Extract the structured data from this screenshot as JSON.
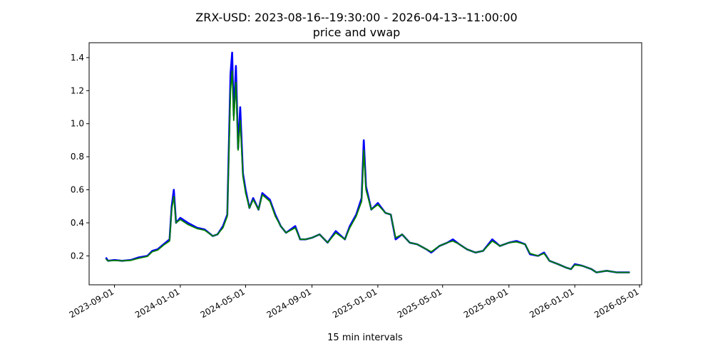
{
  "chart_data": {
    "type": "line",
    "title": "ZRX-USD: 2023-08-16--19:30:00 - 2026-04-13--11:00:00",
    "subtitle": "price and vwap",
    "xlabel": "15 min intervals",
    "ylabel": "",
    "xlim": [
      "2023-07-16",
      "2026-05-05"
    ],
    "ylim": [
      0.025,
      1.49
    ],
    "x_ticks": [
      "2023-09-01",
      "2024-01-01",
      "2024-05-01",
      "2024-09-01",
      "2025-01-01",
      "2025-05-01",
      "2025-09-01",
      "2026-01-01",
      "2026-05-01"
    ],
    "y_ticks": [
      0.2,
      0.4,
      0.6,
      0.8,
      1.0,
      1.2,
      1.4
    ],
    "y_tick_labels": [
      "0.2",
      "0.4",
      "0.6",
      "0.8",
      "1.0",
      "1.2",
      "1.4"
    ],
    "grid": false,
    "series": [
      {
        "color": "#0000ff",
        "points": [
          [
            "2023-08-16",
            0.19
          ],
          [
            "2023-08-20",
            0.17
          ],
          [
            "2023-09-01",
            0.175
          ],
          [
            "2023-09-15",
            0.17
          ],
          [
            "2023-10-01",
            0.175
          ],
          [
            "2023-10-15",
            0.19
          ],
          [
            "2023-11-01",
            0.2
          ],
          [
            "2023-11-10",
            0.23
          ],
          [
            "2023-11-20",
            0.24
          ],
          [
            "2023-12-01",
            0.27
          ],
          [
            "2023-12-12",
            0.3
          ],
          [
            "2023-12-16",
            0.5
          ],
          [
            "2023-12-20",
            0.6
          ],
          [
            "2023-12-24",
            0.4
          ],
          [
            "2024-01-01",
            0.43
          ],
          [
            "2024-01-15",
            0.4
          ],
          [
            "2024-02-01",
            0.37
          ],
          [
            "2024-02-15",
            0.36
          ],
          [
            "2024-03-01",
            0.32
          ],
          [
            "2024-03-10",
            0.33
          ],
          [
            "2024-03-20",
            0.38
          ],
          [
            "2024-03-28",
            0.45
          ],
          [
            "2024-04-03",
            1.3
          ],
          [
            "2024-04-06",
            1.43
          ],
          [
            "2024-04-09",
            1.05
          ],
          [
            "2024-04-13",
            1.35
          ],
          [
            "2024-04-17",
            0.85
          ],
          [
            "2024-04-21",
            1.1
          ],
          [
            "2024-04-26",
            0.7
          ],
          [
            "2024-05-01",
            0.6
          ],
          [
            "2024-05-08",
            0.49
          ],
          [
            "2024-05-15",
            0.55
          ],
          [
            "2024-05-25",
            0.48
          ],
          [
            "2024-06-01",
            0.58
          ],
          [
            "2024-06-15",
            0.54
          ],
          [
            "2024-06-25",
            0.45
          ],
          [
            "2024-07-05",
            0.38
          ],
          [
            "2024-07-15",
            0.34
          ],
          [
            "2024-08-01",
            0.38
          ],
          [
            "2024-08-10",
            0.3
          ],
          [
            "2024-08-20",
            0.3
          ],
          [
            "2024-09-01",
            0.31
          ],
          [
            "2024-09-15",
            0.33
          ],
          [
            "2024-09-30",
            0.28
          ],
          [
            "2024-10-15",
            0.35
          ],
          [
            "2024-11-01",
            0.3
          ],
          [
            "2024-11-10",
            0.38
          ],
          [
            "2024-11-22",
            0.45
          ],
          [
            "2024-12-02",
            0.55
          ],
          [
            "2024-12-06",
            0.9
          ],
          [
            "2024-12-10",
            0.62
          ],
          [
            "2024-12-20",
            0.48
          ],
          [
            "2025-01-01",
            0.52
          ],
          [
            "2025-01-15",
            0.46
          ],
          [
            "2025-01-25",
            0.45
          ],
          [
            "2025-02-03",
            0.3
          ],
          [
            "2025-02-15",
            0.33
          ],
          [
            "2025-03-01",
            0.28
          ],
          [
            "2025-03-15",
            0.27
          ],
          [
            "2025-04-01",
            0.24
          ],
          [
            "2025-04-10",
            0.22
          ],
          [
            "2025-04-25",
            0.26
          ],
          [
            "2025-05-10",
            0.28
          ],
          [
            "2025-05-20",
            0.3
          ],
          [
            "2025-06-01",
            0.27
          ],
          [
            "2025-06-15",
            0.24
          ],
          [
            "2025-07-01",
            0.22
          ],
          [
            "2025-07-15",
            0.23
          ],
          [
            "2025-08-01",
            0.3
          ],
          [
            "2025-08-15",
            0.26
          ],
          [
            "2025-09-01",
            0.28
          ],
          [
            "2025-09-15",
            0.29
          ],
          [
            "2025-10-01",
            0.27
          ],
          [
            "2025-10-10",
            0.21
          ],
          [
            "2025-10-25",
            0.2
          ],
          [
            "2025-11-05",
            0.22
          ],
          [
            "2025-11-15",
            0.17
          ],
          [
            "2025-12-01",
            0.15
          ],
          [
            "2025-12-15",
            0.13
          ],
          [
            "2025-12-25",
            0.12
          ],
          [
            "2026-01-01",
            0.15
          ],
          [
            "2026-01-15",
            0.14
          ],
          [
            "2026-02-01",
            0.12
          ],
          [
            "2026-02-10",
            0.1
          ],
          [
            "2026-03-01",
            0.11
          ],
          [
            "2026-03-20",
            0.1
          ],
          [
            "2026-04-13",
            0.1
          ]
        ]
      },
      {
        "color": "#008000",
        "points": [
          [
            "2023-08-16",
            0.18
          ],
          [
            "2023-08-20",
            0.17
          ],
          [
            "2023-09-01",
            0.172
          ],
          [
            "2023-09-15",
            0.17
          ],
          [
            "2023-10-01",
            0.173
          ],
          [
            "2023-10-15",
            0.185
          ],
          [
            "2023-11-01",
            0.197
          ],
          [
            "2023-11-10",
            0.225
          ],
          [
            "2023-11-20",
            0.235
          ],
          [
            "2023-12-01",
            0.265
          ],
          [
            "2023-12-12",
            0.29
          ],
          [
            "2023-12-16",
            0.48
          ],
          [
            "2023-12-20",
            0.56
          ],
          [
            "2023-12-24",
            0.4
          ],
          [
            "2024-01-01",
            0.42
          ],
          [
            "2024-01-15",
            0.39
          ],
          [
            "2024-02-01",
            0.365
          ],
          [
            "2024-02-15",
            0.355
          ],
          [
            "2024-03-01",
            0.32
          ],
          [
            "2024-03-10",
            0.33
          ],
          [
            "2024-03-20",
            0.37
          ],
          [
            "2024-03-28",
            0.44
          ],
          [
            "2024-04-03",
            1.2
          ],
          [
            "2024-04-06",
            1.32
          ],
          [
            "2024-04-09",
            1.02
          ],
          [
            "2024-04-13",
            1.25
          ],
          [
            "2024-04-17",
            0.84
          ],
          [
            "2024-04-21",
            1.02
          ],
          [
            "2024-04-26",
            0.68
          ],
          [
            "2024-05-01",
            0.58
          ],
          [
            "2024-05-08",
            0.49
          ],
          [
            "2024-05-15",
            0.54
          ],
          [
            "2024-05-25",
            0.48
          ],
          [
            "2024-06-01",
            0.57
          ],
          [
            "2024-06-15",
            0.53
          ],
          [
            "2024-06-25",
            0.44
          ],
          [
            "2024-07-05",
            0.38
          ],
          [
            "2024-07-15",
            0.34
          ],
          [
            "2024-08-01",
            0.37
          ],
          [
            "2024-08-10",
            0.3
          ],
          [
            "2024-08-20",
            0.3
          ],
          [
            "2024-09-01",
            0.31
          ],
          [
            "2024-09-15",
            0.33
          ],
          [
            "2024-09-30",
            0.28
          ],
          [
            "2024-10-15",
            0.34
          ],
          [
            "2024-11-01",
            0.3
          ],
          [
            "2024-11-10",
            0.37
          ],
          [
            "2024-11-22",
            0.44
          ],
          [
            "2024-12-02",
            0.53
          ],
          [
            "2024-12-06",
            0.84
          ],
          [
            "2024-12-10",
            0.6
          ],
          [
            "2024-12-20",
            0.48
          ],
          [
            "2025-01-01",
            0.51
          ],
          [
            "2025-01-15",
            0.46
          ],
          [
            "2025-01-25",
            0.45
          ],
          [
            "2025-02-03",
            0.31
          ],
          [
            "2025-02-15",
            0.33
          ],
          [
            "2025-03-01",
            0.28
          ],
          [
            "2025-03-15",
            0.27
          ],
          [
            "2025-04-01",
            0.24
          ],
          [
            "2025-04-10",
            0.225
          ],
          [
            "2025-04-25",
            0.26
          ],
          [
            "2025-05-10",
            0.28
          ],
          [
            "2025-05-20",
            0.29
          ],
          [
            "2025-06-01",
            0.27
          ],
          [
            "2025-06-15",
            0.24
          ],
          [
            "2025-07-01",
            0.22
          ],
          [
            "2025-07-15",
            0.23
          ],
          [
            "2025-08-01",
            0.29
          ],
          [
            "2025-08-15",
            0.26
          ],
          [
            "2025-09-01",
            0.28
          ],
          [
            "2025-09-15",
            0.285
          ],
          [
            "2025-10-01",
            0.27
          ],
          [
            "2025-10-10",
            0.215
          ],
          [
            "2025-10-25",
            0.2
          ],
          [
            "2025-11-05",
            0.215
          ],
          [
            "2025-11-15",
            0.17
          ],
          [
            "2025-12-01",
            0.15
          ],
          [
            "2025-12-15",
            0.13
          ],
          [
            "2025-12-25",
            0.12
          ],
          [
            "2026-01-01",
            0.145
          ],
          [
            "2026-01-15",
            0.14
          ],
          [
            "2026-02-01",
            0.12
          ],
          [
            "2026-02-10",
            0.1
          ],
          [
            "2026-03-01",
            0.11
          ],
          [
            "2026-03-20",
            0.1
          ],
          [
            "2026-04-13",
            0.1
          ]
        ]
      }
    ]
  }
}
